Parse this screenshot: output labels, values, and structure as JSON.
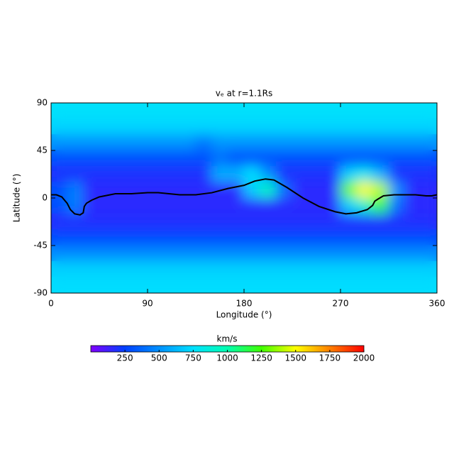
{
  "chart_data": {
    "type": "heatmap",
    "title": "vₑ at r=1.1Rs",
    "x_label": "Longitude (°)",
    "y_label": "Latitude (°)",
    "xlim": [
      0,
      360
    ],
    "ylim": [
      -90,
      90
    ],
    "xticks": [
      0,
      90,
      180,
      270,
      360
    ],
    "yticks": [
      -90,
      -45,
      0,
      45,
      90
    ],
    "x": [
      7.5,
      22.5,
      37.5,
      52.5,
      67.5,
      82.5,
      97.5,
      112.5,
      127.5,
      142.5,
      157.5,
      172.5,
      187.5,
      202.5,
      217.5,
      232.5,
      247.5,
      262.5,
      277.5,
      292.5,
      307.5,
      322.5,
      337.5,
      352.5
    ],
    "y": [
      82.5,
      67.5,
      52.5,
      37.5,
      22.5,
      7.5,
      -7.5,
      -22.5,
      -37.5,
      -52.5,
      -67.5,
      -82.5
    ],
    "z": [
      [
        760,
        760,
        760,
        760,
        760,
        760,
        760,
        760,
        760,
        760,
        760,
        760,
        760,
        760,
        760,
        760,
        760,
        760,
        760,
        760,
        760,
        760,
        760,
        760
      ],
      [
        720,
        720,
        720,
        720,
        720,
        720,
        720,
        720,
        720,
        720,
        720,
        720,
        720,
        720,
        720,
        720,
        720,
        720,
        720,
        720,
        720,
        720,
        720,
        720
      ],
      [
        520,
        520,
        520,
        520,
        520,
        520,
        520,
        520,
        520,
        420,
        520,
        520,
        520,
        520,
        520,
        520,
        520,
        520,
        520,
        520,
        520,
        520,
        520,
        520
      ],
      [
        300,
        300,
        300,
        300,
        300,
        300,
        300,
        300,
        300,
        300,
        400,
        300,
        300,
        300,
        300,
        300,
        300,
        300,
        300,
        300,
        300,
        300,
        300,
        300
      ],
      [
        200,
        200,
        200,
        200,
        200,
        200,
        200,
        200,
        200,
        200,
        600,
        600,
        750,
        500,
        200,
        200,
        200,
        200,
        700,
        800,
        600,
        200,
        200,
        200
      ],
      [
        300,
        450,
        170,
        170,
        170,
        170,
        170,
        170,
        170,
        170,
        170,
        170,
        700,
        950,
        400,
        170,
        170,
        170,
        1300,
        1500,
        1400,
        500,
        170,
        170
      ],
      [
        300,
        450,
        170,
        170,
        170,
        170,
        170,
        170,
        170,
        170,
        170,
        170,
        170,
        170,
        170,
        170,
        170,
        170,
        700,
        900,
        1200,
        400,
        170,
        170
      ],
      [
        180,
        180,
        180,
        180,
        180,
        180,
        180,
        180,
        180,
        180,
        180,
        180,
        180,
        180,
        180,
        180,
        180,
        180,
        180,
        180,
        180,
        180,
        180,
        180
      ],
      [
        280,
        280,
        280,
        280,
        280,
        280,
        280,
        280,
        280,
        280,
        280,
        280,
        280,
        280,
        280,
        280,
        280,
        280,
        280,
        280,
        280,
        280,
        280,
        280
      ],
      [
        480,
        480,
        480,
        480,
        480,
        480,
        480,
        480,
        480,
        480,
        480,
        480,
        480,
        480,
        480,
        480,
        480,
        480,
        480,
        480,
        480,
        480,
        480,
        480
      ],
      [
        700,
        700,
        700,
        700,
        700,
        700,
        700,
        700,
        700,
        700,
        700,
        700,
        700,
        700,
        700,
        700,
        700,
        700,
        700,
        700,
        700,
        700,
        700,
        700
      ],
      [
        740,
        740,
        740,
        740,
        740,
        740,
        740,
        740,
        740,
        740,
        740,
        740,
        740,
        740,
        740,
        740,
        740,
        740,
        740,
        740,
        740,
        740,
        740,
        740
      ]
    ],
    "clim": [
      0,
      2000
    ],
    "colorscale": [
      "#8000ff",
      "#0040ff",
      "#0090ff",
      "#00e0ff",
      "#00ffb0",
      "#40ff00",
      "#ffff00",
      "#ff8000",
      "#ff0000"
    ],
    "colorbar_label": "km/s",
    "colorbar_ticks": [
      250,
      500,
      750,
      1000,
      1250,
      1500,
      1750,
      2000
    ],
    "line": {
      "color": "#000000",
      "x": [
        0,
        5,
        10,
        15,
        18,
        22,
        27,
        30,
        31,
        33,
        38,
        45,
        60,
        75,
        90,
        100,
        110,
        120,
        135,
        150,
        165,
        180,
        190,
        200,
        208,
        220,
        235,
        250,
        265,
        275,
        285,
        295,
        300,
        302,
        305,
        310,
        320,
        340,
        350,
        355,
        360
      ],
      "y": [
        3,
        3,
        1,
        -5,
        -11,
        -15,
        -16,
        -14,
        -8,
        -5,
        -2,
        1,
        4,
        4,
        5,
        5,
        4,
        3,
        3,
        5,
        9,
        12,
        16,
        18,
        17,
        10,
        0,
        -8,
        -13,
        -15,
        -14,
        -11,
        -7,
        -3,
        -1,
        2,
        3,
        3,
        2,
        2,
        3
      ]
    }
  }
}
